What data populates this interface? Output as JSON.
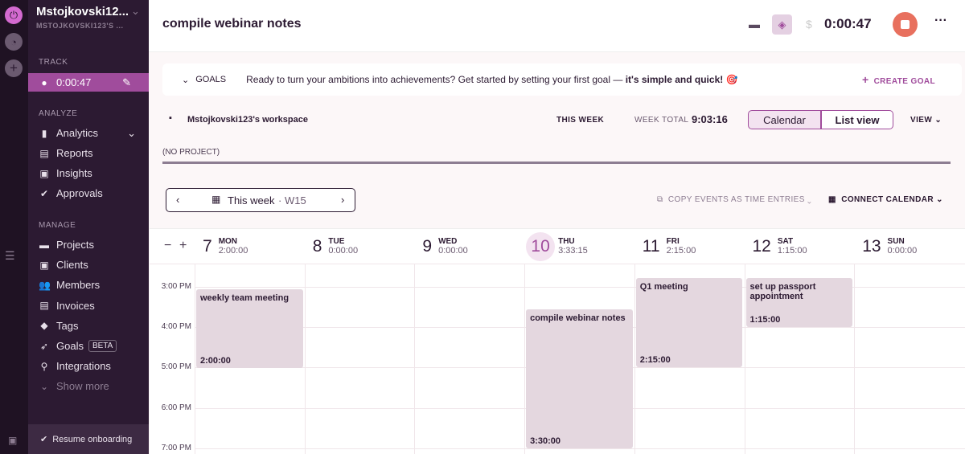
{
  "sidebar": {
    "workspace": "Mstojkovski12...",
    "workspace_sub": "MSTOJKOVSKI123'S ...",
    "track": "TRACK",
    "timer": "0:00:47",
    "analyze": "ANALYZE",
    "manage": "MANAGE",
    "analyze_items": [
      {
        "label": "Analytics",
        "icon": "chart-icon"
      },
      {
        "label": "Reports",
        "icon": "report-icon"
      },
      {
        "label": "Insights",
        "icon": "insights-icon"
      },
      {
        "label": "Approvals",
        "icon": "check-icon"
      }
    ],
    "manage_items": [
      {
        "label": "Projects",
        "icon": "folder-icon"
      },
      {
        "label": "Clients",
        "icon": "client-icon"
      },
      {
        "label": "Members",
        "icon": "members-icon"
      },
      {
        "label": "Invoices",
        "icon": "invoice-icon"
      },
      {
        "label": "Tags",
        "icon": "tag-icon"
      },
      {
        "label": "Goals",
        "icon": "rocket-icon",
        "badge": "BETA"
      },
      {
        "label": "Integrations",
        "icon": "plug-icon"
      },
      {
        "label": "Show more",
        "icon": "chevron-down-icon"
      }
    ],
    "resume": "Resume onboarding"
  },
  "header": {
    "title": "compile webinar notes",
    "timer": "0:00:47"
  },
  "goals": {
    "label": "GOALS",
    "message": "Ready to turn your ambitions into achievements? Get started by setting your first goal — ",
    "bold": "it's simple and quick!",
    "emoji": "🎯",
    "create": "CREATE GOAL"
  },
  "toolbar": {
    "workspace": "Mstojkovski123's workspace",
    "this_week": "THIS WEEK",
    "week_total_label": "WEEK TOTAL",
    "week_total": "9:03:16",
    "calendar": "Calendar",
    "list": "List view",
    "view": "VIEW"
  },
  "project": "(NO PROJECT)",
  "nav": {
    "week": "This week",
    "wk": "· W15",
    "copy": "COPY EVENTS AS TIME ENTRIES",
    "connect": "CONNECT CALENDAR"
  },
  "days": [
    {
      "n": "7",
      "w": "MON",
      "t": "2:00:00"
    },
    {
      "n": "8",
      "w": "TUE",
      "t": "0:00:00"
    },
    {
      "n": "9",
      "w": "WED",
      "t": "0:00:00"
    },
    {
      "n": "10",
      "w": "THU",
      "t": "3:33:15"
    },
    {
      "n": "11",
      "w": "FRI",
      "t": "2:15:00"
    },
    {
      "n": "12",
      "w": "SAT",
      "t": "1:15:00"
    },
    {
      "n": "13",
      "w": "SUN",
      "t": "0:00:00"
    }
  ],
  "hours": [
    "3:00 PM",
    "4:00 PM",
    "5:00 PM",
    "6:00 PM",
    "7:00 PM"
  ],
  "events": [
    {
      "title": "weekly team meeting",
      "duration": "2:00:00",
      "day": "MON"
    },
    {
      "title": "compile webinar notes",
      "duration": "3:30:00",
      "day": "THU"
    },
    {
      "title": "Q1 meeting",
      "duration": "2:15:00",
      "day": "FRI"
    },
    {
      "title": "set up passport appointment",
      "duration": "1:15:00",
      "day": "SAT"
    }
  ],
  "colors": {
    "accent": "#a04c9c",
    "sidebar": "#2c1a32",
    "stop": "#e8705e"
  }
}
